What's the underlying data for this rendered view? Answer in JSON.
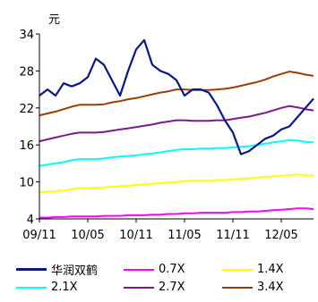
{
  "chart_data": {
    "type": "line",
    "unit_label": "元",
    "ylim": [
      4,
      34
    ],
    "yticks": [
      4,
      10,
      16,
      22,
      28,
      34
    ],
    "x_tick_labels": [
      "09/11",
      "10/05",
      "10/11",
      "11/05",
      "11/11",
      "12/05"
    ],
    "x": [
      "09/11",
      "09/12",
      "10/01",
      "10/02",
      "10/03",
      "10/04",
      "10/05",
      "10/06",
      "10/07",
      "10/08",
      "10/09",
      "10/10",
      "10/11",
      "10/12",
      "11/01",
      "11/02",
      "11/03",
      "11/04",
      "11/05",
      "11/06",
      "11/07",
      "11/08",
      "11/09",
      "11/10",
      "11/11",
      "11/12",
      "12/01",
      "12/02",
      "12/03",
      "12/04",
      "12/05",
      "12/06",
      "12/07",
      "12/08",
      "12/09"
    ],
    "grid": false,
    "legend_position": "bottom",
    "series": [
      {
        "name": "华润双鹤",
        "color": "#0a1a7a",
        "values": [
          24,
          25,
          24,
          26,
          25.5,
          26,
          27,
          30,
          29,
          26.5,
          24,
          28,
          31.5,
          33,
          29,
          28,
          27.5,
          26.5,
          24,
          25,
          25,
          24.5,
          22.5,
          20,
          18,
          14.5,
          15,
          16,
          17,
          17.5,
          18.5,
          19,
          20.5,
          22,
          23.5
        ]
      },
      {
        "name": "0.7X",
        "color": "#ff00ff",
        "values": [
          4.2,
          4.2,
          4.3,
          4.3,
          4.4,
          4.4,
          4.4,
          4.4,
          4.5,
          4.5,
          4.5,
          4.6,
          4.6,
          4.6,
          4.7,
          4.7,
          4.8,
          4.8,
          4.9,
          4.9,
          5.0,
          5.0,
          5.0,
          5.0,
          5.1,
          5.1,
          5.2,
          5.2,
          5.3,
          5.4,
          5.5,
          5.6,
          5.7,
          5.7,
          5.6
        ]
      },
      {
        "name": "1.4X",
        "color": "#ffff00",
        "values": [
          8.3,
          8.4,
          8.5,
          8.6,
          8.8,
          9.0,
          9.0,
          9.0,
          9.1,
          9.2,
          9.3,
          9.4,
          9.5,
          9.6,
          9.7,
          9.8,
          9.9,
          10.0,
          10.1,
          10.2,
          10.2,
          10.2,
          10.3,
          10.3,
          10.4,
          10.5,
          10.6,
          10.7,
          10.8,
          10.9,
          11.0,
          11.1,
          11.2,
          11.1,
          11.0
        ]
      },
      {
        "name": "2.1X",
        "color": "#00ffff",
        "values": [
          12.6,
          12.8,
          13.0,
          13.2,
          13.5,
          13.7,
          13.7,
          13.7,
          13.8,
          14.0,
          14.1,
          14.2,
          14.3,
          14.5,
          14.6,
          14.8,
          15.0,
          15.2,
          15.3,
          15.3,
          15.4,
          15.4,
          15.5,
          15.5,
          15.6,
          15.7,
          15.8,
          16.0,
          16.2,
          16.4,
          16.6,
          16.8,
          16.7,
          16.5,
          16.4
        ]
      },
      {
        "name": "2.7X",
        "color": "#7b1a8c",
        "values": [
          16.6,
          16.9,
          17.2,
          17.5,
          17.8,
          18.0,
          18.0,
          18.0,
          18.1,
          18.3,
          18.5,
          18.7,
          18.9,
          19.1,
          19.3,
          19.6,
          19.8,
          20.0,
          20.0,
          19.9,
          19.9,
          19.9,
          20.0,
          20.0,
          20.2,
          20.4,
          20.6,
          20.9,
          21.2,
          21.6,
          22.0,
          22.3,
          22.1,
          21.8,
          21.6
        ]
      },
      {
        "name": "3.4X",
        "color": "#9b3d06",
        "values": [
          20.8,
          21.1,
          21.4,
          21.8,
          22.2,
          22.5,
          22.5,
          22.5,
          22.6,
          22.9,
          23.1,
          23.4,
          23.6,
          23.9,
          24.2,
          24.5,
          24.7,
          25.0,
          25.0,
          24.9,
          24.9,
          24.9,
          25.0,
          25.1,
          25.3,
          25.6,
          25.9,
          26.2,
          26.6,
          27.1,
          27.5,
          27.9,
          27.7,
          27.4,
          27.2
        ]
      }
    ]
  }
}
